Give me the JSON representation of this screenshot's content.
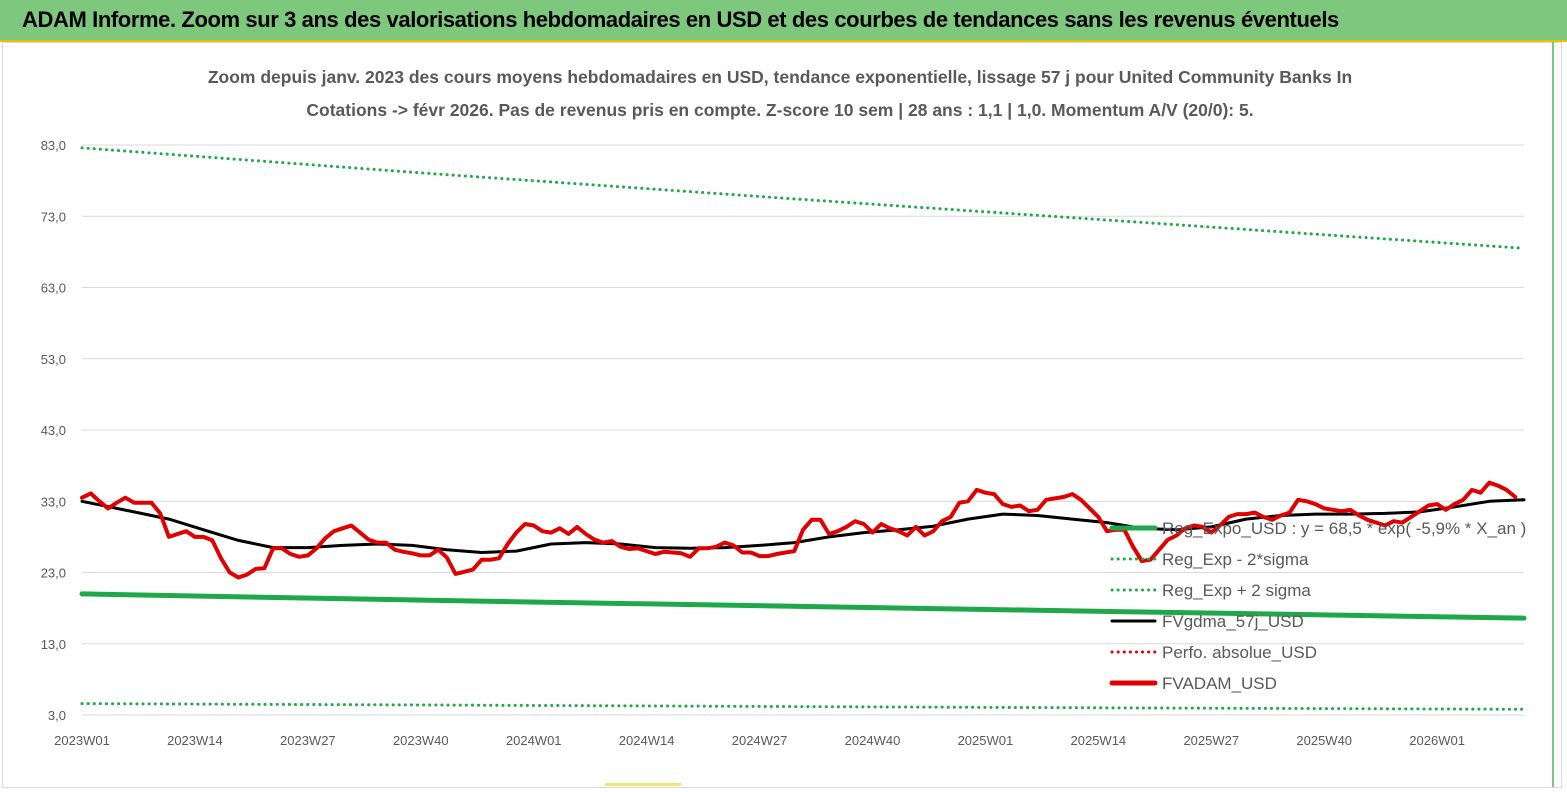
{
  "banner": {
    "title": "ADAM Informe. Zoom sur 3 ans des valorisations hebdomadaires en USD et des courbes de tendances sans les revenus éventuels"
  },
  "colors": {
    "banner_bg": "#7dc87d",
    "reg_expo": "#1ea84a",
    "sigma": "#1ea84a",
    "fvgdma": "#000000",
    "perfo": "#e00000",
    "fvadam": "#e00000",
    "gridline": "#d9d9d9",
    "text": "#595959"
  },
  "chart_data": {
    "type": "line",
    "title_lines": [
      "Zoom depuis janv. 2023 des cours moyens hebdomadaires en USD, tendance exponentielle, lissage 57 j pour United Community Banks In",
      "Cotations -> févr 2026. Pas de revenus pris en compte. Z-score 10 sem | 28 ans : 1,1 | 1,0. Momentum A/V (20/0): 5."
    ],
    "x_tick_labels": [
      "2023W01",
      "2023W14",
      "2023W27",
      "2023W40",
      "2024W01",
      "2024W14",
      "2024W27",
      "2024W40",
      "2025W01",
      "2025W14",
      "2025W27",
      "2025W40",
      "2026W01"
    ],
    "x_range": [
      0,
      166
    ],
    "y_ticks": [
      3,
      13,
      23,
      33,
      43,
      53,
      63,
      73,
      83
    ],
    "y_tick_labels": [
      "3,0",
      "13,0",
      "23,0",
      "33,0",
      "43,0",
      "53,0",
      "63,0",
      "73,0",
      "83,0"
    ],
    "ylim": [
      3,
      83
    ],
    "grid": true,
    "legend_position": "right",
    "series": [
      {
        "name": "Reg_Expo_USD : y = 68,5 * exp( -5,9% * X_an )",
        "style": "solid-thick",
        "color": "#1ea84a",
        "points": [
          [
            0,
            20.0
          ],
          [
            40,
            19.1
          ],
          [
            80,
            18.3
          ],
          [
            120,
            17.5
          ],
          [
            166,
            16.6
          ]
        ]
      },
      {
        "name": "Reg_Exp - 2*sigma",
        "style": "dotted",
        "color": "#1ea84a",
        "points": [
          [
            0,
            4.6
          ],
          [
            40,
            4.4
          ],
          [
            80,
            4.2
          ],
          [
            120,
            4.0
          ],
          [
            166,
            3.8
          ]
        ]
      },
      {
        "name": "Reg_Exp + 2 sigma",
        "style": "dotted",
        "color": "#1ea84a",
        "points": [
          [
            0,
            82.6
          ],
          [
            40,
            79.0
          ],
          [
            80,
            75.6
          ],
          [
            120,
            72.3
          ],
          [
            166,
            68.5
          ]
        ]
      },
      {
        "name": "FVgdma_57j_USD",
        "style": "solid",
        "color": "#000000",
        "points": [
          [
            0,
            33.0
          ],
          [
            6,
            31.5
          ],
          [
            10,
            30.5
          ],
          [
            14,
            29.0
          ],
          [
            18,
            27.5
          ],
          [
            22,
            26.5
          ],
          [
            26,
            26.5
          ],
          [
            30,
            26.8
          ],
          [
            34,
            27.0
          ],
          [
            38,
            26.8
          ],
          [
            42,
            26.2
          ],
          [
            46,
            25.8
          ],
          [
            50,
            26.0
          ],
          [
            54,
            27.0
          ],
          [
            58,
            27.2
          ],
          [
            62,
            27.0
          ],
          [
            66,
            26.5
          ],
          [
            70,
            26.4
          ],
          [
            74,
            26.5
          ],
          [
            78,
            26.8
          ],
          [
            82,
            27.2
          ],
          [
            86,
            28.0
          ],
          [
            90,
            28.6
          ],
          [
            94,
            29.0
          ],
          [
            98,
            29.5
          ],
          [
            102,
            30.5
          ],
          [
            106,
            31.2
          ],
          [
            110,
            31.0
          ],
          [
            114,
            30.5
          ],
          [
            118,
            30.0
          ],
          [
            122,
            29.2
          ],
          [
            126,
            29.0
          ],
          [
            130,
            29.4
          ],
          [
            134,
            30.5
          ],
          [
            138,
            31.0
          ],
          [
            142,
            31.2
          ],
          [
            146,
            31.2
          ],
          [
            150,
            31.3
          ],
          [
            154,
            31.5
          ],
          [
            158,
            32.2
          ],
          [
            162,
            33.0
          ],
          [
            166,
            33.2
          ]
        ]
      },
      {
        "name": "Perfo. absolue_USD",
        "style": "dotted",
        "color": "#e00000",
        "points": []
      },
      {
        "name": "FVADAM_USD",
        "style": "solid-thick",
        "color": "#e00000",
        "points": [
          [
            0,
            33.5
          ],
          [
            1,
            34.1
          ],
          [
            2,
            33.0
          ],
          [
            3,
            32.0
          ],
          [
            4,
            32.8
          ],
          [
            5,
            33.5
          ],
          [
            6,
            32.8
          ],
          [
            7,
            32.8
          ],
          [
            8,
            32.8
          ],
          [
            9,
            31.3
          ],
          [
            10,
            28.0
          ],
          [
            11,
            28.4
          ],
          [
            12,
            28.8
          ],
          [
            13,
            28.0
          ],
          [
            14,
            28.0
          ],
          [
            15,
            27.5
          ],
          [
            16,
            25.0
          ],
          [
            17,
            23.0
          ],
          [
            18,
            22.3
          ],
          [
            19,
            22.7
          ],
          [
            20,
            23.5
          ],
          [
            21,
            23.6
          ],
          [
            22,
            26.4
          ],
          [
            23,
            26.4
          ],
          [
            24,
            25.6
          ],
          [
            25,
            25.2
          ],
          [
            26,
            25.4
          ],
          [
            27,
            26.4
          ],
          [
            28,
            27.8
          ],
          [
            29,
            28.8
          ],
          [
            30,
            29.2
          ],
          [
            31,
            29.6
          ],
          [
            32,
            28.6
          ],
          [
            33,
            27.6
          ],
          [
            34,
            27.2
          ],
          [
            35,
            27.2
          ],
          [
            36,
            26.2
          ],
          [
            37,
            25.9
          ],
          [
            38,
            25.7
          ],
          [
            39,
            25.4
          ],
          [
            40,
            25.4
          ],
          [
            41,
            26.2
          ],
          [
            42,
            25.1
          ],
          [
            43,
            22.8
          ],
          [
            44,
            23.1
          ],
          [
            45,
            23.4
          ],
          [
            46,
            24.8
          ],
          [
            47,
            24.8
          ],
          [
            48,
            25.0
          ],
          [
            49,
            27.0
          ],
          [
            50,
            28.6
          ],
          [
            51,
            29.8
          ],
          [
            52,
            29.6
          ],
          [
            53,
            28.8
          ],
          [
            54,
            28.6
          ],
          [
            55,
            29.2
          ],
          [
            56,
            28.4
          ],
          [
            57,
            29.4
          ],
          [
            58,
            28.4
          ],
          [
            59,
            27.6
          ],
          [
            60,
            27.2
          ],
          [
            61,
            27.4
          ],
          [
            62,
            26.6
          ],
          [
            63,
            26.3
          ],
          [
            64,
            26.4
          ],
          [
            65,
            26.0
          ],
          [
            66,
            25.6
          ],
          [
            67,
            25.9
          ],
          [
            68,
            25.8
          ],
          [
            69,
            25.7
          ],
          [
            70,
            25.2
          ],
          [
            71,
            26.4
          ],
          [
            72,
            26.4
          ],
          [
            73,
            26.6
          ],
          [
            74,
            27.2
          ],
          [
            75,
            26.8
          ],
          [
            76,
            25.8
          ],
          [
            77,
            25.8
          ],
          [
            78,
            25.3
          ],
          [
            79,
            25.3
          ],
          [
            80,
            25.6
          ],
          [
            81,
            25.8
          ],
          [
            82,
            26.0
          ],
          [
            83,
            29.0
          ],
          [
            84,
            30.4
          ],
          [
            85,
            30.4
          ],
          [
            86,
            28.4
          ],
          [
            87,
            28.8
          ],
          [
            88,
            29.4
          ],
          [
            89,
            30.2
          ],
          [
            90,
            29.8
          ],
          [
            91,
            28.6
          ],
          [
            92,
            29.8
          ],
          [
            93,
            29.2
          ],
          [
            94,
            28.8
          ],
          [
            95,
            28.2
          ],
          [
            96,
            29.4
          ],
          [
            97,
            28.2
          ],
          [
            98,
            28.8
          ],
          [
            99,
            30.2
          ],
          [
            100,
            30.8
          ],
          [
            101,
            32.8
          ],
          [
            102,
            33.0
          ],
          [
            103,
            34.6
          ],
          [
            104,
            34.2
          ],
          [
            105,
            34.0
          ],
          [
            106,
            32.6
          ],
          [
            107,
            32.2
          ],
          [
            108,
            32.4
          ],
          [
            109,
            31.6
          ],
          [
            110,
            31.8
          ],
          [
            111,
            33.2
          ],
          [
            112,
            33.4
          ],
          [
            113,
            33.6
          ],
          [
            114,
            34.0
          ],
          [
            115,
            33.2
          ],
          [
            116,
            32.0
          ],
          [
            117,
            30.8
          ],
          [
            118,
            28.8
          ],
          [
            119,
            29.0
          ],
          [
            120,
            29.0
          ],
          [
            121,
            26.6
          ],
          [
            122,
            24.6
          ],
          [
            123,
            24.8
          ],
          [
            124,
            26.2
          ],
          [
            125,
            27.6
          ],
          [
            126,
            28.2
          ],
          [
            127,
            29.2
          ],
          [
            128,
            29.6
          ],
          [
            129,
            29.4
          ],
          [
            130,
            28.6
          ],
          [
            131,
            29.6
          ],
          [
            132,
            30.8
          ],
          [
            133,
            31.2
          ],
          [
            134,
            31.2
          ],
          [
            135,
            31.4
          ],
          [
            136,
            30.8
          ],
          [
            137,
            30.4
          ],
          [
            138,
            31.0
          ],
          [
            139,
            31.4
          ],
          [
            140,
            33.2
          ],
          [
            141,
            33.0
          ],
          [
            142,
            32.6
          ],
          [
            143,
            32.0
          ],
          [
            144,
            31.8
          ],
          [
            145,
            31.6
          ],
          [
            146,
            31.8
          ],
          [
            147,
            31.0
          ],
          [
            148,
            30.4
          ],
          [
            149,
            30.0
          ],
          [
            150,
            29.6
          ],
          [
            151,
            30.2
          ],
          [
            152,
            30.0
          ],
          [
            153,
            30.8
          ],
          [
            154,
            31.6
          ],
          [
            155,
            32.4
          ],
          [
            156,
            32.6
          ],
          [
            157,
            31.8
          ],
          [
            158,
            32.6
          ],
          [
            159,
            33.2
          ],
          [
            160,
            34.6
          ],
          [
            161,
            34.2
          ],
          [
            162,
            35.6
          ],
          [
            163,
            35.2
          ],
          [
            164,
            34.6
          ],
          [
            165,
            33.6
          ]
        ]
      }
    ]
  }
}
